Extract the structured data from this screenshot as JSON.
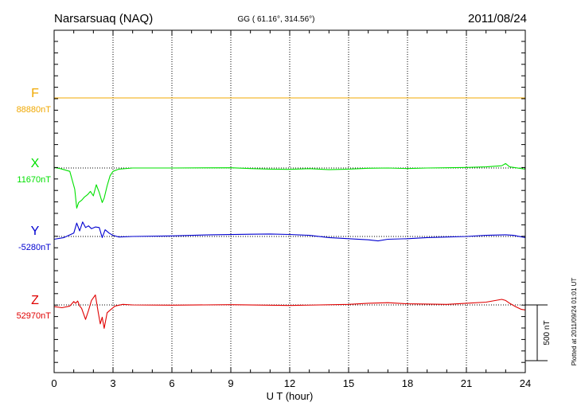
{
  "header": {
    "station": "Narsarsuaq (NAQ)",
    "coords": "GG ( 61.16°, 314.56°)",
    "date": "2011/08/24"
  },
  "footer": {
    "plotted": "Plotted at 2011/09/24 01:01 UT"
  },
  "colors": {
    "F": "#f0a800",
    "X": "#00e000",
    "Y": "#0000d0",
    "Z": "#e00000",
    "axis": "#000000"
  },
  "chart_data": {
    "type": "line",
    "xlabel": "U T (hour)",
    "xlim": [
      0,
      24
    ],
    "xticks": [
      "0",
      "3",
      "6",
      "9",
      "12",
      "15",
      "18",
      "21",
      "24"
    ],
    "scale_bar": {
      "label": "500 nT",
      "value": 500
    },
    "series": [
      {
        "name": "F",
        "baseline_label": "88880nT",
        "baseline": 88880,
        "x": [
          0,
          24
        ],
        "y": [
          88880,
          88880
        ]
      },
      {
        "name": "X",
        "baseline_label": "11670nT",
        "baseline": 11670,
        "x": [
          0,
          0.3,
          0.8,
          1.05,
          1.15,
          1.25,
          1.4,
          1.55,
          1.7,
          1.85,
          2.0,
          2.15,
          2.3,
          2.45,
          2.55,
          2.7,
          2.85,
          3.0,
          3.3,
          4,
          6,
          9,
          10,
          11,
          12,
          13,
          14,
          15,
          16,
          17,
          18,
          19,
          20,
          21,
          22,
          22.8,
          23.0,
          23.2,
          24
        ],
        "y": [
          11675,
          11665,
          11640,
          11480,
          11310,
          11360,
          11380,
          11410,
          11430,
          11460,
          11420,
          11520,
          11450,
          11360,
          11400,
          11510,
          11600,
          11640,
          11660,
          11670,
          11670,
          11672,
          11665,
          11660,
          11658,
          11664,
          11655,
          11660,
          11668,
          11670,
          11665,
          11670,
          11672,
          11675,
          11680,
          11690,
          11710,
          11680,
          11660
        ]
      },
      {
        "name": "Y",
        "baseline_label": "-5280nT",
        "baseline": -5280,
        "x": [
          0,
          0.5,
          1.0,
          1.15,
          1.3,
          1.45,
          1.6,
          1.75,
          1.9,
          2.1,
          2.3,
          2.45,
          2.6,
          2.8,
          3.0,
          3.3,
          4,
          6,
          8,
          10,
          11,
          12,
          13,
          14,
          15,
          16,
          16.5,
          17,
          18,
          19,
          20,
          21,
          22,
          23,
          23.4,
          24
        ],
        "y": [
          -5305,
          -5290,
          -5250,
          -5160,
          -5230,
          -5150,
          -5200,
          -5185,
          -5210,
          -5195,
          -5200,
          -5290,
          -5220,
          -5250,
          -5270,
          -5285,
          -5280,
          -5275,
          -5265,
          -5260,
          -5258,
          -5262,
          -5270,
          -5290,
          -5300,
          -5310,
          -5320,
          -5305,
          -5300,
          -5290,
          -5285,
          -5280,
          -5270,
          -5265,
          -5270,
          -5290
        ]
      },
      {
        "name": "Z",
        "baseline_label": "52970nT",
        "baseline": 52970,
        "x": [
          0,
          0.4,
          0.8,
          1.0,
          1.1,
          1.2,
          1.3,
          1.4,
          1.5,
          1.6,
          1.75,
          1.9,
          2.1,
          2.25,
          2.35,
          2.45,
          2.55,
          2.7,
          2.9,
          3.1,
          3.5,
          4,
          6,
          9,
          12,
          15,
          16,
          17,
          18,
          20,
          21,
          22,
          22.8,
          23.0,
          23.2,
          23.5,
          23.8,
          24
        ],
        "y": [
          52955,
          52945,
          52960,
          53000,
          52985,
          53005,
          52960,
          52940,
          52890,
          52840,
          52920,
          53010,
          53060,
          52900,
          52800,
          52860,
          52760,
          52900,
          52930,
          52960,
          52975,
          52970,
          52968,
          52972,
          52965,
          52975,
          52985,
          52990,
          52980,
          52975,
          52985,
          52995,
          53020,
          53010,
          52985,
          52955,
          52930,
          52925
        ]
      }
    ]
  }
}
